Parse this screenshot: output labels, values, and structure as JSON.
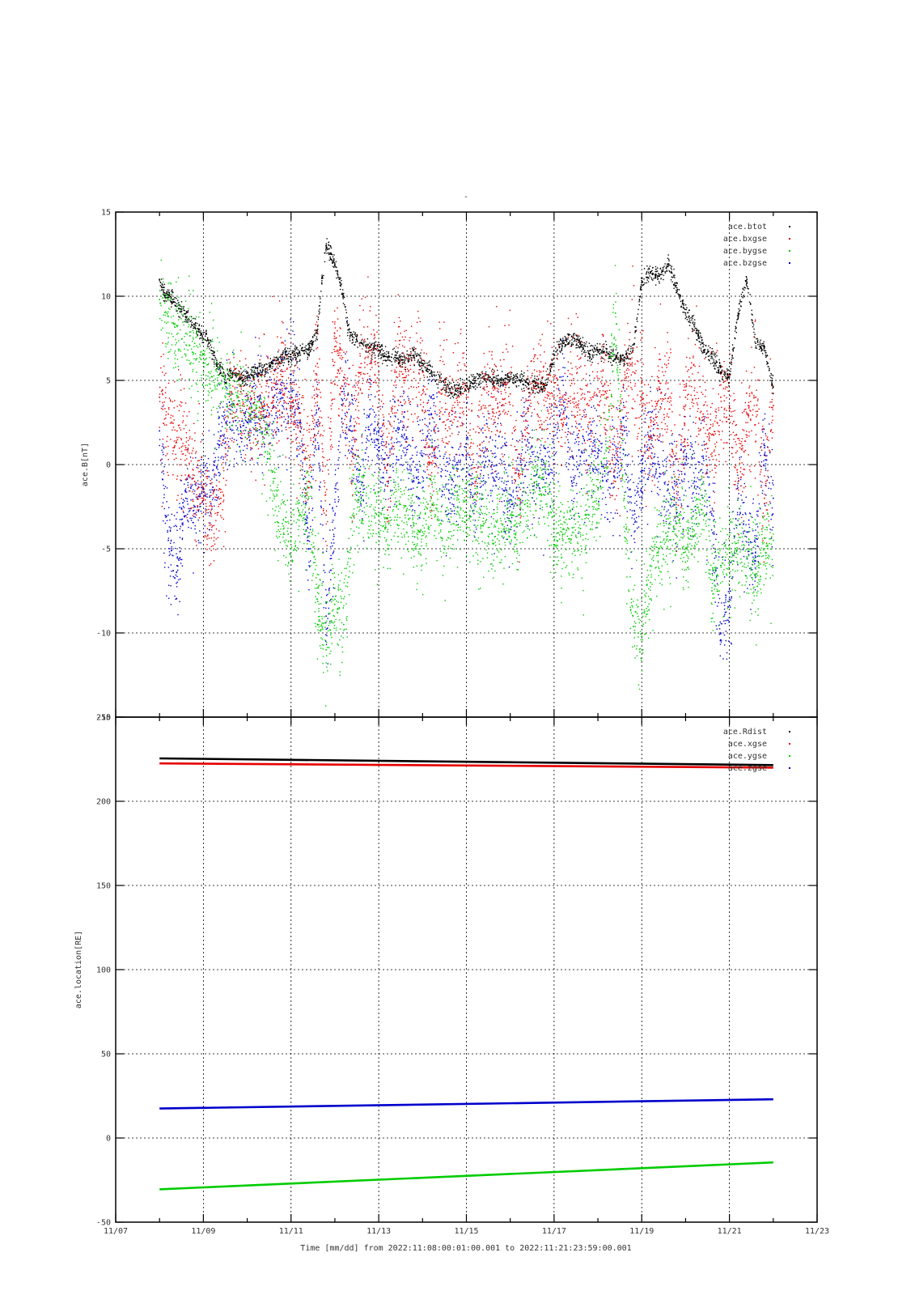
{
  "top_mark": "-",
  "x_axis": {
    "label": "Time [mm/dd]  from 2022:11:08:00:01:00.001  to  2022:11:21:23:59:00.001",
    "range_days": [
      0,
      16
    ],
    "ticks": [
      {
        "day": 0,
        "label": "11/07"
      },
      {
        "day": 2,
        "label": "11/09"
      },
      {
        "day": 4,
        "label": "11/11"
      },
      {
        "day": 6,
        "label": "11/13"
      },
      {
        "day": 8,
        "label": "11/15"
      },
      {
        "day": 10,
        "label": "11/17"
      },
      {
        "day": 12,
        "label": "11/19"
      },
      {
        "day": 14,
        "label": "11/21"
      },
      {
        "day": 16,
        "label": "11/23"
      }
    ]
  },
  "chart_data": [
    {
      "type": "scatter",
      "ylabel": "ace.B[nT]",
      "ylim": [
        -15,
        15
      ],
      "yticks": [
        15,
        10,
        5,
        0,
        -5,
        -10,
        -15
      ],
      "grid": true,
      "legend_position": "top-right",
      "series": [
        {
          "name": "ace.btot",
          "color": "#000000",
          "x": [
            1.0,
            1.1,
            1.3,
            1.5,
            1.7,
            1.9,
            2.1,
            2.3,
            2.5,
            2.7,
            2.9,
            3.1,
            3.3,
            3.5,
            3.7,
            3.9,
            4.0,
            4.2,
            4.4,
            4.6,
            4.7,
            4.8,
            4.9,
            5.0,
            5.1,
            5.2,
            5.3,
            5.4,
            5.5,
            5.6,
            5.8,
            6.0,
            6.2,
            6.4,
            6.6,
            6.8,
            7.0,
            7.2,
            7.4,
            7.6,
            7.8,
            8.0,
            8.2,
            8.4,
            8.6,
            8.8,
            9.0,
            9.2,
            9.4,
            9.6,
            9.8,
            10.0,
            10.2,
            10.4,
            10.6,
            10.8,
            11.0,
            11.2,
            11.4,
            11.6,
            11.8,
            12.0,
            12.2,
            12.4,
            12.6,
            12.8,
            13.0,
            13.2,
            13.4,
            13.6,
            13.8,
            14.0,
            14.2,
            14.4,
            14.6,
            14.8,
            15.0
          ],
          "y": [
            11.0,
            10.2,
            9.8,
            9.2,
            8.5,
            8.0,
            7.4,
            6.0,
            5.2,
            5.4,
            5.0,
            5.3,
            5.6,
            5.8,
            6.3,
            6.5,
            6.4,
            6.6,
            6.8,
            7.8,
            10.8,
            13.0,
            12.5,
            11.8,
            11.0,
            10.0,
            8.0,
            7.6,
            7.4,
            7.2,
            7.0,
            6.8,
            6.4,
            6.3,
            6.2,
            6.5,
            6.0,
            5.5,
            5.0,
            4.5,
            4.4,
            4.7,
            5.0,
            5.2,
            5.0,
            5.0,
            5.1,
            5.0,
            4.8,
            4.7,
            4.7,
            6.5,
            7.2,
            7.6,
            7.2,
            6.6,
            6.8,
            6.7,
            6.3,
            6.2,
            6.8,
            10.8,
            11.4,
            11.2,
            11.9,
            10.5,
            9.0,
            8.2,
            7.0,
            6.4,
            5.5,
            5.2,
            9.0,
            11.0,
            7.2,
            7.0,
            4.6
          ]
        },
        {
          "name": "ace.bxgse",
          "color": "#e60000",
          "x": [
            1.0,
            1.2,
            1.4,
            1.6,
            1.8,
            2.0,
            2.2,
            2.4,
            2.6,
            2.8,
            3.0,
            3.2,
            3.4,
            3.6,
            3.8,
            4.0,
            4.2,
            4.4,
            4.6,
            4.8,
            5.0,
            5.2,
            5.4,
            5.6,
            5.8,
            6.0,
            6.2,
            6.4,
            6.6,
            6.8,
            7.0,
            7.2,
            7.4,
            7.6,
            7.8,
            8.0,
            8.2,
            8.4,
            8.6,
            8.8,
            9.0,
            9.2,
            9.4,
            9.6,
            9.8,
            10.0,
            10.2,
            10.4,
            10.6,
            10.8,
            11.0,
            11.2,
            11.4,
            11.6,
            11.8,
            12.0,
            12.2,
            12.4,
            12.6,
            12.8,
            13.0,
            13.2,
            13.4,
            13.6,
            13.8,
            14.0,
            14.2,
            14.4,
            14.6,
            14.8,
            15.0
          ],
          "y": [
            4.0,
            3.0,
            2.0,
            1.0,
            -1.0,
            -2.0,
            -2.5,
            -2.0,
            3.5,
            4.0,
            3.5,
            3.0,
            3.5,
            4.0,
            4.5,
            4.0,
            2.0,
            -1.0,
            6.0,
            -3.0,
            7.0,
            5.0,
            0.5,
            6.0,
            6.0,
            5.5,
            -1.0,
            5.5,
            5.0,
            5.5,
            5.5,
            -2.0,
            5.0,
            3.0,
            4.0,
            4.0,
            -1.0,
            4.5,
            4.0,
            3.5,
            4.2,
            -2.0,
            4.5,
            4.5,
            4.5,
            4.0,
            3.0,
            5.0,
            4.5,
            2.5,
            4.5,
            4.0,
            -1.0,
            5.0,
            5.5,
            4.0,
            0.5,
            4.5,
            4.5,
            -2.0,
            4.0,
            5.0,
            3.0,
            0.5,
            4.0,
            3.5,
            -1.0,
            3.0,
            4.0,
            -2.0,
            3.5
          ]
        },
        {
          "name": "ace.bygse",
          "color": "#00cc00",
          "x": [
            1.0,
            1.2,
            1.4,
            1.6,
            1.8,
            2.0,
            2.2,
            2.4,
            2.6,
            2.8,
            3.0,
            3.2,
            3.4,
            3.6,
            3.8,
            4.0,
            4.2,
            4.4,
            4.6,
            4.8,
            5.0,
            5.2,
            5.4,
            5.6,
            5.8,
            6.0,
            6.2,
            6.4,
            6.6,
            6.8,
            7.0,
            7.2,
            7.4,
            7.6,
            7.8,
            8.0,
            8.2,
            8.4,
            8.6,
            8.8,
            9.0,
            9.2,
            9.4,
            9.6,
            9.8,
            10.0,
            10.2,
            10.4,
            10.6,
            10.8,
            11.0,
            11.2,
            11.4,
            11.6,
            11.8,
            12.0,
            12.2,
            12.4,
            12.6,
            12.8,
            13.0,
            13.2,
            13.4,
            13.6,
            13.8,
            14.0,
            14.2,
            14.4,
            14.6,
            14.8,
            15.0
          ],
          "y": [
            9.8,
            8.8,
            8.2,
            7.8,
            7.2,
            6.0,
            5.2,
            4.8,
            4.2,
            3.8,
            3.5,
            3.0,
            2.0,
            -1.0,
            -3.5,
            -5.0,
            -3.0,
            -2.0,
            -8.0,
            -11.0,
            -8.0,
            -9.5,
            -3.0,
            -1.0,
            -2.5,
            -3.0,
            -4.0,
            -2.5,
            -3.0,
            -3.5,
            -4.0,
            -2.0,
            -3.5,
            -4.0,
            -2.5,
            -3.0,
            -2.5,
            -3.5,
            -4.5,
            -4.0,
            -3.0,
            -3.5,
            -2.5,
            -1.0,
            -1.5,
            -3.5,
            -4.5,
            -4.2,
            -3.8,
            -2.5,
            -1.5,
            1.0,
            9.0,
            -2.0,
            -9.0,
            -10.2,
            -7.0,
            -5.0,
            -4.0,
            -3.5,
            -5.0,
            -3.5,
            -2.0,
            -7.5,
            -6.0,
            -5.0,
            -4.5,
            -5.5,
            -6.5,
            -5.0,
            -4.5
          ]
        },
        {
          "name": "ace.bzgse",
          "color": "#0000cc",
          "x": [
            1.0,
            1.2,
            1.4,
            1.6,
            1.8,
            2.0,
            2.2,
            2.4,
            2.6,
            2.8,
            3.0,
            3.2,
            3.4,
            3.6,
            3.8,
            4.0,
            4.2,
            4.4,
            4.6,
            4.8,
            5.0,
            5.2,
            5.4,
            5.6,
            5.8,
            6.0,
            6.2,
            6.4,
            6.6,
            6.8,
            7.0,
            7.2,
            7.4,
            7.6,
            7.8,
            8.0,
            8.2,
            8.4,
            8.6,
            8.8,
            9.0,
            9.2,
            9.4,
            9.6,
            9.8,
            10.0,
            10.2,
            10.4,
            10.6,
            10.8,
            11.0,
            11.2,
            11.4,
            11.6,
            11.8,
            12.0,
            12.2,
            12.4,
            12.6,
            12.8,
            13.0,
            13.2,
            13.4,
            13.6,
            13.8,
            14.0,
            14.2,
            14.4,
            14.6,
            14.8,
            15.0
          ],
          "y": [
            2.0,
            -4.5,
            -6.0,
            -2.0,
            -2.5,
            -2.0,
            -1.5,
            2.0,
            2.5,
            1.8,
            2.5,
            3.0,
            2.8,
            3.5,
            3.5,
            4.5,
            2.5,
            -5.0,
            3.5,
            -9.0,
            -3.0,
            4.5,
            2.0,
            -2.0,
            3.0,
            1.0,
            0.0,
            2.0,
            1.5,
            -1.0,
            0.5,
            3.0,
            0.5,
            -1.5,
            0.0,
            0.5,
            -2.5,
            0.5,
            -0.5,
            1.0,
            -2.5,
            0.0,
            1.5,
            -1.0,
            0.5,
            1.0,
            5.0,
            -1.0,
            0.5,
            1.5,
            0.5,
            -1.0,
            0.0,
            2.0,
            -3.0,
            -1.0,
            2.0,
            0.0,
            -1.5,
            -2.0,
            0.0,
            -1.0,
            0.5,
            -3.0,
            -10.0,
            -8.0,
            -2.0,
            -4.0,
            -5.5,
            1.0,
            -2.0
          ]
        }
      ]
    },
    {
      "type": "line",
      "ylabel": "ace.location[RE]",
      "ylim": [
        -50,
        250
      ],
      "yticks": [
        250,
        200,
        150,
        100,
        50,
        0,
        -50
      ],
      "grid": true,
      "legend_position": "top-right",
      "series": [
        {
          "name": "ace.Rdist",
          "color": "#000000",
          "x": [
            1,
            15
          ],
          "y": [
            225.5,
            221.5
          ]
        },
        {
          "name": "ace.xgse",
          "color": "#e60000",
          "x": [
            1,
            15
          ],
          "y": [
            222.5,
            220.0
          ]
        },
        {
          "name": "ace.ygse",
          "color": "#00cc00",
          "x": [
            1,
            15
          ],
          "y": [
            -30.5,
            -14.5
          ]
        },
        {
          "name": "ace.zgse",
          "color": "#0000cc",
          "x": [
            1,
            15
          ],
          "y": [
            17.5,
            23.0
          ]
        }
      ]
    }
  ]
}
